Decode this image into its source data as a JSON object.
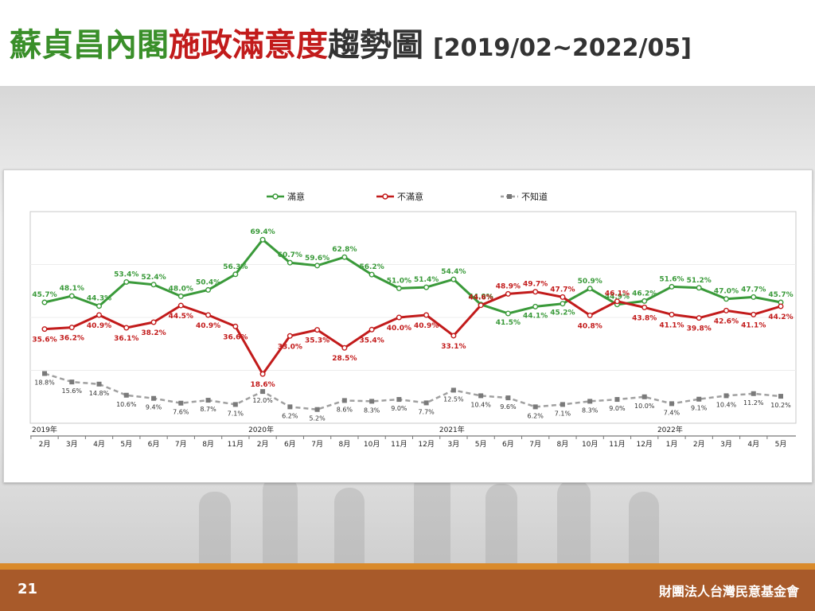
{
  "header": {
    "title_green": "蘇貞昌內閣",
    "title_red": "施政滿意度",
    "title_gray": "趨勢圖",
    "date_range": "[2019/02~2022/05]"
  },
  "footer": {
    "page_number": "21",
    "organization": "財團法人台灣民意基金會"
  },
  "colors": {
    "satisfied": "#3a9a3a",
    "dissatisfied": "#c21b1b",
    "dont_know": "#a0a0a0"
  },
  "chart_data": {
    "type": "line",
    "title": "",
    "xlabel": "",
    "ylabel": "",
    "ylim": [
      0,
      80
    ],
    "grid": true,
    "legend_position": "top",
    "categories": [
      "2月",
      "3月",
      "4月",
      "5月",
      "6月",
      "7月",
      "8月",
      "11月",
      "2月",
      "6月",
      "7月",
      "8月",
      "10月",
      "11月",
      "12月",
      "3月",
      "5月",
      "6月",
      "7月",
      "8月",
      "10月",
      "11月",
      "12月",
      "1月",
      "2月",
      "3月",
      "4月",
      "5月"
    ],
    "year_markers": [
      {
        "index": 0,
        "label": "2019年"
      },
      {
        "index": 8,
        "label": "2020年"
      },
      {
        "index": 15,
        "label": "2021年"
      },
      {
        "index": 23,
        "label": "2022年"
      }
    ],
    "series": [
      {
        "name": "滿意",
        "values": [
          45.7,
          48.1,
          44.3,
          53.4,
          52.4,
          48.0,
          50.4,
          56.3,
          69.4,
          60.7,
          59.6,
          62.8,
          56.2,
          51.0,
          51.4,
          54.4,
          44.9,
          41.5,
          44.1,
          45.2,
          50.9,
          44.9,
          46.2,
          51.6,
          51.2,
          47.0,
          47.7,
          45.7
        ],
        "labels": [
          "45.7%",
          "48.1%",
          "44.3%",
          "53.4%",
          "52.4%",
          "48.0%",
          "50.4%",
          "56.3%",
          "69.4%",
          "60.7%",
          "59.6%",
          "62.8%",
          "56.2%",
          "51.0%",
          "51.4%",
          "54.4%",
          "44.9%",
          "41.5%",
          "44.1%",
          "45.2%",
          "50.9%",
          "44.9%",
          "46.2%",
          "51.6%",
          "51.2%",
          "47.0%",
          "47.7%",
          "45.7%"
        ]
      },
      {
        "name": "不滿意",
        "values": [
          35.6,
          36.2,
          40.9,
          36.1,
          38.2,
          44.5,
          40.9,
          36.6,
          18.6,
          33.0,
          35.3,
          28.5,
          35.4,
          40.0,
          40.9,
          33.1,
          44.6,
          48.9,
          49.7,
          47.7,
          40.8,
          46.1,
          43.8,
          41.1,
          39.8,
          42.6,
          41.1,
          44.2
        ],
        "labels": [
          "35.6%",
          "36.2%",
          "40.9%",
          "36.1%",
          "38.2%",
          "44.5%",
          "40.9%",
          "36.6%",
          "18.6%",
          "33.0%",
          "35.3%",
          "28.5%",
          "35.4%",
          "40.0%",
          "40.9%",
          "33.1%",
          "44.6%",
          "48.9%",
          "49.7%",
          "47.7%",
          "40.8%",
          "46.1%",
          "43.8%",
          "41.1%",
          "39.8%",
          "42.6%",
          "41.1%",
          "44.2%"
        ]
      },
      {
        "name": "不知道",
        "values": [
          18.8,
          15.6,
          14.8,
          10.6,
          9.4,
          7.6,
          8.7,
          7.1,
          12.0,
          6.2,
          5.2,
          8.6,
          8.3,
          9.0,
          7.7,
          12.5,
          10.4,
          9.6,
          6.2,
          7.1,
          8.3,
          9.0,
          10.0,
          7.4,
          9.1,
          10.4,
          11.2,
          10.2
        ],
        "labels": [
          "18.8%",
          "15.6%",
          "14.8%",
          "10.6%",
          "9.4%",
          "7.6%",
          "8.7%",
          "7.1%",
          "12.0%",
          "6.2%",
          "5.2%",
          "8.6%",
          "8.3%",
          "9.0%",
          "7.7%",
          "12.5%",
          "10.4%",
          "9.6%",
          "6.2%",
          "7.1%",
          "8.3%",
          "9.0%",
          "10.0%",
          "7.4%",
          "9.1%",
          "10.4%",
          "11.2%",
          "10.2%"
        ]
      }
    ]
  }
}
